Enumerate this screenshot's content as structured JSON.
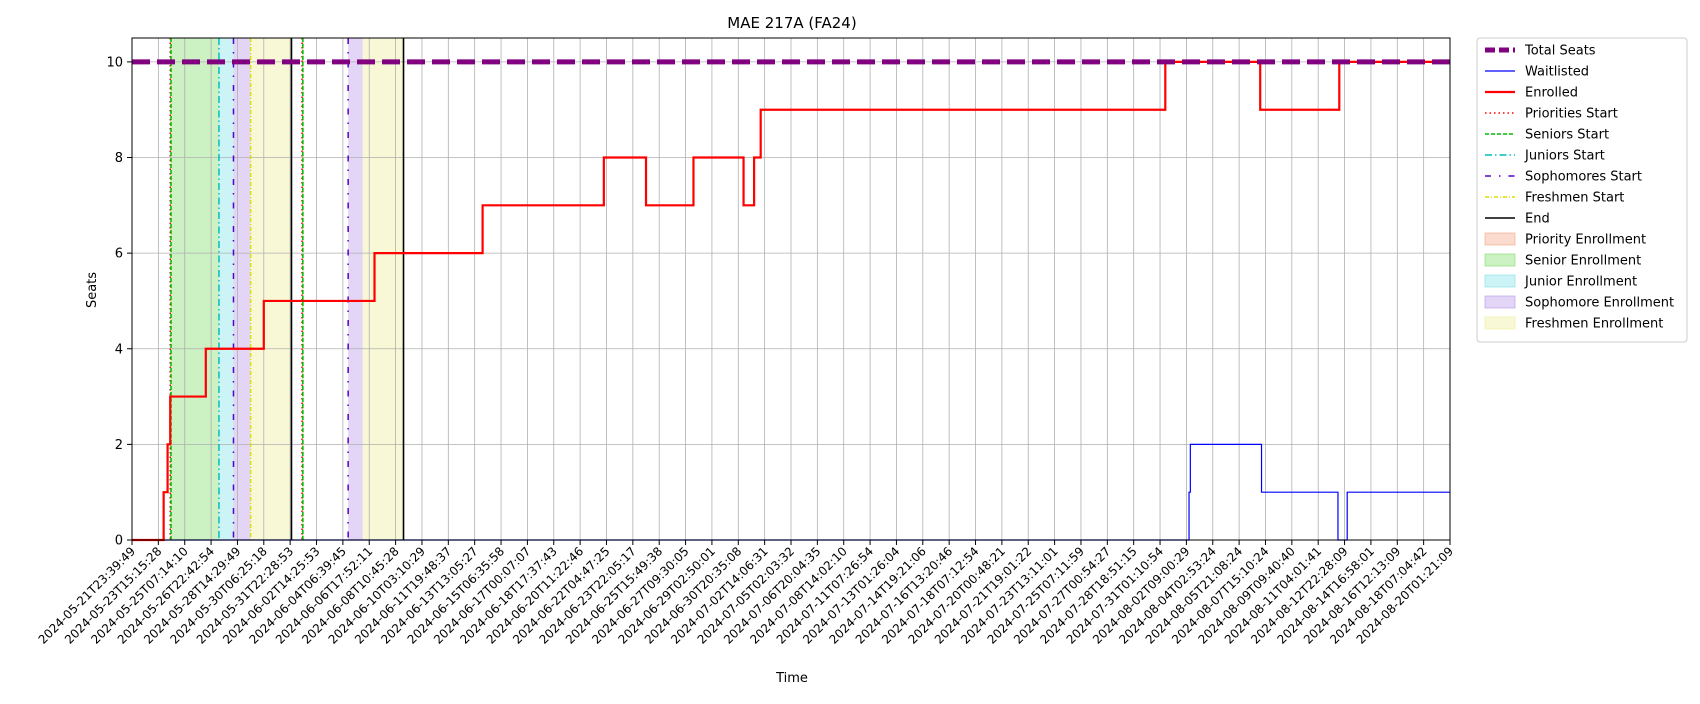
{
  "chart_data": {
    "type": "line",
    "title": "MAE 217A (FA24)",
    "xlabel": "Time",
    "ylabel": "Seats",
    "ylim": [
      0,
      10.5
    ],
    "yticks": [
      0,
      2,
      4,
      6,
      8,
      10
    ],
    "x_range": [
      "2024-05-21T23:39:49",
      "2024-08-20T01:21:09"
    ],
    "grid": true,
    "legend_position": "outside-right",
    "xtick_labels": [
      "2024-05-21T23:39:49",
      "2024-05-23T15:15:28",
      "2024-05-25T07:14:10",
      "2024-05-26T22:42:54",
      "2024-05-28T14:29:49",
      "2024-05-30T06:25:18",
      "2024-05-31T22:28:53",
      "2024-06-02T14:25:53",
      "2024-06-04T06:39:45",
      "2024-06-06T17:52:11",
      "2024-06-08T10:45:28",
      "2024-06-10T03:10:29",
      "2024-06-11T19:48:37",
      "2024-06-13T13:05:27",
      "2024-06-15T06:35:58",
      "2024-06-17T00:07:07",
      "2024-06-18T17:37:43",
      "2024-06-20T11:22:46",
      "2024-06-22T04:47:25",
      "2024-06-23T22:05:17",
      "2024-06-25T15:49:38",
      "2024-06-27T09:30:05",
      "2024-06-29T02:50:01",
      "2024-06-30T20:35:08",
      "2024-07-02T14:06:31",
      "2024-07-05T02:03:32",
      "2024-07-06T20:04:35",
      "2024-07-08T14:02:10",
      "2024-07-11T07:26:54",
      "2024-07-13T01:26:04",
      "2024-07-14T19:21:06",
      "2024-07-16T13:20:46",
      "2024-07-18T07:12:54",
      "2024-07-20T00:48:21",
      "2024-07-21T19:01:22",
      "2024-07-23T13:11:01",
      "2024-07-25T07:11:59",
      "2024-07-27T00:54:27",
      "2024-07-28T18:51:15",
      "2024-07-31T01:10:54",
      "2024-08-02T09:00:29",
      "2024-08-04T02:53:24",
      "2024-08-05T21:08:24",
      "2024-08-07T15:10:24",
      "2024-08-09T09:40:40",
      "2024-08-11T04:01:41",
      "2024-08-12T22:28:09",
      "2024-08-14T16:58:01",
      "2024-08-16T12:13:09",
      "2024-08-18T07:04:42",
      "2024-08-20T01:21:09"
    ],
    "series": [
      {
        "name": "Total Seats",
        "color": "#800080",
        "style": "dashed",
        "steps": [
          [
            0,
            10
          ],
          [
            50,
            10
          ]
        ]
      },
      {
        "name": "Waitlisted",
        "color": "#0000ff",
        "style": "solid",
        "steps": [
          [
            0,
            0
          ],
          [
            40.1,
            1
          ],
          [
            40.15,
            2
          ],
          [
            42.85,
            1
          ],
          [
            45.75,
            0
          ],
          [
            46.1,
            1
          ],
          [
            50,
            1
          ]
        ]
      },
      {
        "name": "Enrolled",
        "color": "#ff0000",
        "style": "solid",
        "steps": [
          [
            0,
            0
          ],
          [
            1.2,
            1
          ],
          [
            1.35,
            2
          ],
          [
            1.45,
            3
          ],
          [
            2.8,
            4
          ],
          [
            5.0,
            5
          ],
          [
            9.2,
            6
          ],
          [
            13.3,
            7
          ],
          [
            17.9,
            8
          ],
          [
            19.5,
            7
          ],
          [
            21.3,
            8
          ],
          [
            23.2,
            7
          ],
          [
            23.6,
            8
          ],
          [
            23.85,
            9
          ],
          [
            39.2,
            10
          ],
          [
            42.8,
            9
          ],
          [
            45.8,
            10
          ],
          [
            50,
            10
          ]
        ]
      }
    ],
    "start_lines": [
      {
        "name": "Priorities Start",
        "color": "#ff0000",
        "style": "dotted",
        "x": [
          1.45,
          6.45
        ]
      },
      {
        "name": "Seniors Start",
        "color": "#00bb00",
        "style": "dashed",
        "x": [
          1.48,
          6.48
        ]
      },
      {
        "name": "Juniors Start",
        "color": "#00bfbf",
        "style": "dashdot",
        "x": [
          3.3
        ]
      },
      {
        "name": "Sophomores Start",
        "color": "#5500cc",
        "style": "loose-dashdot",
        "x": [
          3.85,
          8.2
        ]
      },
      {
        "name": "Freshmen Start",
        "color": "#dddd00",
        "style": "dashdot-yellow",
        "x": [
          4.5
        ]
      },
      {
        "name": "End",
        "color": "#000000",
        "style": "solid",
        "x": [
          6.05,
          10.3
        ]
      }
    ],
    "enrollment_periods": [
      {
        "name": "Priority Enrollment",
        "color": "#f4a582",
        "ranges": [
          [
            1.45,
            1.48
          ],
          [
            6.45,
            6.48
          ]
        ]
      },
      {
        "name": "Senior Enrollment",
        "color": "#7fdc6a",
        "ranges": [
          [
            1.48,
            3.3
          ],
          [
            6.48,
            6.5
          ]
        ]
      },
      {
        "name": "Junior Enrollment",
        "color": "#7fe0e6",
        "ranges": [
          [
            3.3,
            3.85
          ]
        ]
      },
      {
        "name": "Sophomore Enrollment",
        "color": "#b895e8",
        "ranges": [
          [
            3.85,
            4.5
          ],
          [
            8.2,
            8.75
          ]
        ]
      },
      {
        "name": "Freshmen Enrollment",
        "color": "#eeee9a",
        "ranges": [
          [
            4.5,
            6.05
          ],
          [
            8.75,
            10.3
          ]
        ]
      }
    ]
  }
}
